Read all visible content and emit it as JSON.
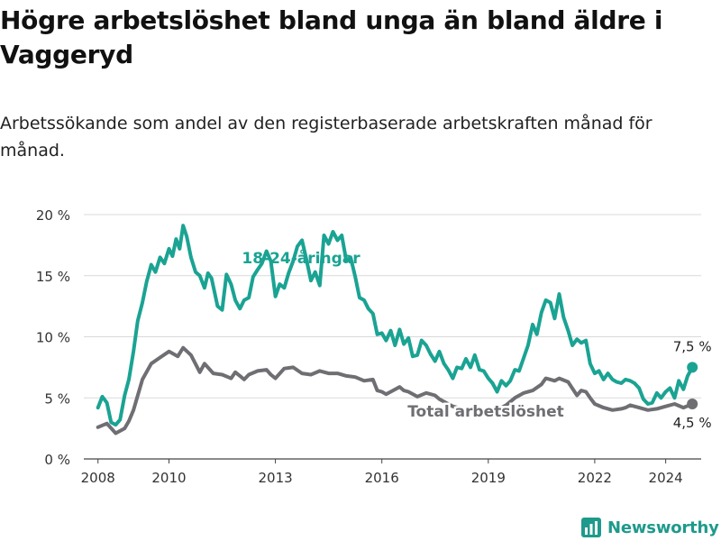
{
  "title": "Högre arbetslöshet bland unga än bland äldre i Vaggeryd",
  "subtitle": "Arbetssökande som andel av den registerbaserade arbetskraften månad för månad.",
  "brand": "Newsworthy",
  "colors": {
    "youth": "#1aa393",
    "total": "#6e6e73",
    "grid": "#d9d9d9",
    "axis": "#444444",
    "brand": "#1e9a8c"
  },
  "chart_data": {
    "type": "line",
    "xlim": [
      2007.6,
      2025.0
    ],
    "ylim": [
      0,
      20
    ],
    "y_ticks": [
      {
        "value": 0,
        "label": "0 %"
      },
      {
        "value": 5,
        "label": "5 %"
      },
      {
        "value": 10,
        "label": "10 %"
      },
      {
        "value": 15,
        "label": "15 %"
      },
      {
        "value": 20,
        "label": "20 %"
      }
    ],
    "x_ticks": [
      {
        "value": 2008,
        "label": "2008"
      },
      {
        "value": 2010,
        "label": "2010"
      },
      {
        "value": 2013,
        "label": "2013"
      },
      {
        "value": 2016,
        "label": "2016"
      },
      {
        "value": 2019,
        "label": "2019"
      },
      {
        "value": 2022,
        "label": "2022"
      },
      {
        "value": 2024,
        "label": "2024"
      }
    ],
    "grid": true,
    "series": [
      {
        "name": "18-24-åringar",
        "end_label": "7,5 %",
        "points": [
          [
            2008.0,
            4.2
          ],
          [
            2008.12,
            5.1
          ],
          [
            2008.25,
            4.6
          ],
          [
            2008.37,
            3.0
          ],
          [
            2008.5,
            2.8
          ],
          [
            2008.62,
            3.2
          ],
          [
            2008.75,
            5.2
          ],
          [
            2008.87,
            6.5
          ],
          [
            2009.0,
            8.8
          ],
          [
            2009.12,
            11.3
          ],
          [
            2009.25,
            12.8
          ],
          [
            2009.37,
            14.5
          ],
          [
            2009.5,
            15.9
          ],
          [
            2009.62,
            15.3
          ],
          [
            2009.75,
            16.5
          ],
          [
            2009.87,
            16.0
          ],
          [
            2010.0,
            17.2
          ],
          [
            2010.1,
            16.6
          ],
          [
            2010.2,
            18.0
          ],
          [
            2010.3,
            17.2
          ],
          [
            2010.4,
            19.1
          ],
          [
            2010.5,
            18.2
          ],
          [
            2010.62,
            16.5
          ],
          [
            2010.75,
            15.3
          ],
          [
            2010.87,
            15.0
          ],
          [
            2011.0,
            14.0
          ],
          [
            2011.1,
            15.2
          ],
          [
            2011.2,
            14.8
          ],
          [
            2011.37,
            12.5
          ],
          [
            2011.5,
            12.2
          ],
          [
            2011.62,
            15.1
          ],
          [
            2011.75,
            14.3
          ],
          [
            2011.87,
            13.0
          ],
          [
            2012.0,
            12.3
          ],
          [
            2012.12,
            13.0
          ],
          [
            2012.25,
            13.2
          ],
          [
            2012.37,
            14.9
          ],
          [
            2012.5,
            15.5
          ],
          [
            2012.62,
            16.0
          ],
          [
            2012.75,
            17.0
          ],
          [
            2012.87,
            16.2
          ],
          [
            2013.0,
            13.3
          ],
          [
            2013.12,
            14.3
          ],
          [
            2013.25,
            14.0
          ],
          [
            2013.37,
            15.2
          ],
          [
            2013.5,
            16.2
          ],
          [
            2013.62,
            17.4
          ],
          [
            2013.75,
            17.9
          ],
          [
            2013.87,
            16.4
          ],
          [
            2014.0,
            14.6
          ],
          [
            2014.12,
            15.3
          ],
          [
            2014.25,
            14.2
          ],
          [
            2014.37,
            18.3
          ],
          [
            2014.5,
            17.6
          ],
          [
            2014.62,
            18.6
          ],
          [
            2014.75,
            17.9
          ],
          [
            2014.87,
            18.3
          ],
          [
            2015.0,
            16.2
          ],
          [
            2015.12,
            16.5
          ],
          [
            2015.25,
            14.9
          ],
          [
            2015.37,
            13.2
          ],
          [
            2015.5,
            13.0
          ],
          [
            2015.62,
            12.3
          ],
          [
            2015.75,
            11.9
          ],
          [
            2015.87,
            10.2
          ],
          [
            2016.0,
            10.3
          ],
          [
            2016.12,
            9.7
          ],
          [
            2016.25,
            10.5
          ],
          [
            2016.37,
            9.3
          ],
          [
            2016.5,
            10.6
          ],
          [
            2016.62,
            9.4
          ],
          [
            2016.75,
            9.9
          ],
          [
            2016.87,
            8.4
          ],
          [
            2017.0,
            8.5
          ],
          [
            2017.12,
            9.7
          ],
          [
            2017.25,
            9.3
          ],
          [
            2017.37,
            8.6
          ],
          [
            2017.5,
            8.0
          ],
          [
            2017.62,
            8.8
          ],
          [
            2017.75,
            7.8
          ],
          [
            2017.87,
            7.3
          ],
          [
            2018.0,
            6.6
          ],
          [
            2018.12,
            7.5
          ],
          [
            2018.25,
            7.4
          ],
          [
            2018.37,
            8.2
          ],
          [
            2018.5,
            7.5
          ],
          [
            2018.62,
            8.5
          ],
          [
            2018.75,
            7.3
          ],
          [
            2018.87,
            7.2
          ],
          [
            2019.0,
            6.6
          ],
          [
            2019.12,
            6.2
          ],
          [
            2019.25,
            5.5
          ],
          [
            2019.37,
            6.4
          ],
          [
            2019.5,
            6.0
          ],
          [
            2019.62,
            6.4
          ],
          [
            2019.75,
            7.3
          ],
          [
            2019.87,
            7.2
          ],
          [
            2020.0,
            8.3
          ],
          [
            2020.12,
            9.3
          ],
          [
            2020.25,
            11.0
          ],
          [
            2020.37,
            10.2
          ],
          [
            2020.5,
            12.0
          ],
          [
            2020.62,
            13.0
          ],
          [
            2020.75,
            12.8
          ],
          [
            2020.87,
            11.5
          ],
          [
            2021.0,
            13.5
          ],
          [
            2021.12,
            11.6
          ],
          [
            2021.25,
            10.5
          ],
          [
            2021.37,
            9.3
          ],
          [
            2021.5,
            9.8
          ],
          [
            2021.62,
            9.5
          ],
          [
            2021.75,
            9.7
          ],
          [
            2021.87,
            7.8
          ],
          [
            2022.0,
            7.0
          ],
          [
            2022.12,
            7.2
          ],
          [
            2022.25,
            6.5
          ],
          [
            2022.37,
            7.0
          ],
          [
            2022.5,
            6.5
          ],
          [
            2022.62,
            6.3
          ],
          [
            2022.75,
            6.2
          ],
          [
            2022.87,
            6.5
          ],
          [
            2023.0,
            6.4
          ],
          [
            2023.12,
            6.2
          ],
          [
            2023.25,
            5.8
          ],
          [
            2023.37,
            4.9
          ],
          [
            2023.5,
            4.5
          ],
          [
            2023.62,
            4.6
          ],
          [
            2023.75,
            5.4
          ],
          [
            2023.87,
            5.0
          ],
          [
            2024.0,
            5.5
          ],
          [
            2024.12,
            5.8
          ],
          [
            2024.25,
            5.0
          ],
          [
            2024.37,
            6.4
          ],
          [
            2024.5,
            5.7
          ],
          [
            2024.62,
            6.8
          ],
          [
            2024.75,
            7.5
          ]
        ]
      },
      {
        "name": "Total arbetslöshet",
        "end_label": "4,5 %",
        "points": [
          [
            2008.0,
            2.6
          ],
          [
            2008.25,
            2.9
          ],
          [
            2008.5,
            2.1
          ],
          [
            2008.75,
            2.5
          ],
          [
            2008.87,
            3.1
          ],
          [
            2009.0,
            4.0
          ],
          [
            2009.25,
            6.5
          ],
          [
            2009.5,
            7.8
          ],
          [
            2009.75,
            8.3
          ],
          [
            2010.0,
            8.8
          ],
          [
            2010.25,
            8.4
          ],
          [
            2010.4,
            9.1
          ],
          [
            2010.62,
            8.5
          ],
          [
            2010.87,
            7.1
          ],
          [
            2011.0,
            7.8
          ],
          [
            2011.25,
            7.0
          ],
          [
            2011.5,
            6.9
          ],
          [
            2011.75,
            6.6
          ],
          [
            2011.87,
            7.1
          ],
          [
            2012.0,
            6.8
          ],
          [
            2012.12,
            6.5
          ],
          [
            2012.25,
            6.9
          ],
          [
            2012.5,
            7.2
          ],
          [
            2012.75,
            7.3
          ],
          [
            2012.87,
            6.9
          ],
          [
            2013.0,
            6.6
          ],
          [
            2013.25,
            7.4
          ],
          [
            2013.5,
            7.5
          ],
          [
            2013.75,
            7.0
          ],
          [
            2014.0,
            6.9
          ],
          [
            2014.25,
            7.2
          ],
          [
            2014.5,
            7.0
          ],
          [
            2014.75,
            7.0
          ],
          [
            2015.0,
            6.8
          ],
          [
            2015.25,
            6.7
          ],
          [
            2015.5,
            6.4
          ],
          [
            2015.75,
            6.5
          ],
          [
            2015.87,
            5.6
          ],
          [
            2016.0,
            5.5
          ],
          [
            2016.12,
            5.3
          ],
          [
            2016.25,
            5.5
          ],
          [
            2016.5,
            5.9
          ],
          [
            2016.62,
            5.6
          ],
          [
            2016.75,
            5.5
          ],
          [
            2017.0,
            5.1
          ],
          [
            2017.25,
            5.4
          ],
          [
            2017.5,
            5.2
          ],
          [
            2017.62,
            4.9
          ],
          [
            2017.87,
            4.5
          ],
          [
            2018.0,
            4.3
          ],
          [
            2018.25,
            4.1
          ],
          [
            2018.5,
            4.0
          ],
          [
            2018.75,
            3.8
          ],
          [
            2019.0,
            3.7
          ],
          [
            2019.25,
            4.0
          ],
          [
            2019.5,
            4.4
          ],
          [
            2019.75,
            5.0
          ],
          [
            2020.0,
            5.4
          ],
          [
            2020.25,
            5.6
          ],
          [
            2020.5,
            6.1
          ],
          [
            2020.62,
            6.6
          ],
          [
            2020.75,
            6.5
          ],
          [
            2020.87,
            6.4
          ],
          [
            2021.0,
            6.6
          ],
          [
            2021.25,
            6.3
          ],
          [
            2021.5,
            5.2
          ],
          [
            2021.62,
            5.6
          ],
          [
            2021.75,
            5.5
          ],
          [
            2021.87,
            5.0
          ],
          [
            2022.0,
            4.5
          ],
          [
            2022.25,
            4.2
          ],
          [
            2022.5,
            4.0
          ],
          [
            2022.75,
            4.1
          ],
          [
            2022.87,
            4.2
          ],
          [
            2023.0,
            4.4
          ],
          [
            2023.25,
            4.2
          ],
          [
            2023.5,
            4.0
          ],
          [
            2023.75,
            4.1
          ],
          [
            2024.0,
            4.3
          ],
          [
            2024.25,
            4.5
          ],
          [
            2024.5,
            4.2
          ],
          [
            2024.75,
            4.5
          ]
        ]
      }
    ]
  }
}
